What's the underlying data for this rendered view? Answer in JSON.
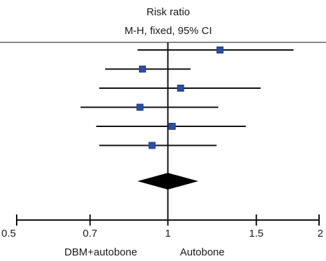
{
  "chart_data": {
    "type": "forest",
    "title": "Risk ratio",
    "subtitle": "M-H, fixed, 95% CI",
    "scale": "log",
    "xlim": [
      0.5,
      2
    ],
    "reference_value": 1,
    "x_ticks": [
      0.5,
      0.7,
      1,
      1.5,
      2
    ],
    "x_tick_labels": [
      "0.5",
      "0.7",
      "1",
      "1.5",
      "2"
    ],
    "favours_left": "DBM+autobone",
    "favours_right": "Autobone",
    "studies": [
      {
        "estimate": 1.27,
        "lower": 0.87,
        "upper": 1.78
      },
      {
        "estimate": 0.89,
        "lower": 0.75,
        "upper": 1.11
      },
      {
        "estimate": 1.06,
        "lower": 0.73,
        "upper": 1.53
      },
      {
        "estimate": 0.88,
        "lower": 0.67,
        "upper": 1.26
      },
      {
        "estimate": 1.02,
        "lower": 0.72,
        "upper": 1.43
      },
      {
        "estimate": 0.93,
        "lower": 0.73,
        "upper": 1.25
      }
    ],
    "pooled": {
      "estimate": 1.0,
      "lower": 0.87,
      "upper": 1.15
    },
    "colors": {
      "marker": "#2b4ea8",
      "marker_edge": "#1f3a85",
      "lines": "#111111",
      "diamond": "#000000",
      "text": "#1a1a1a"
    }
  }
}
